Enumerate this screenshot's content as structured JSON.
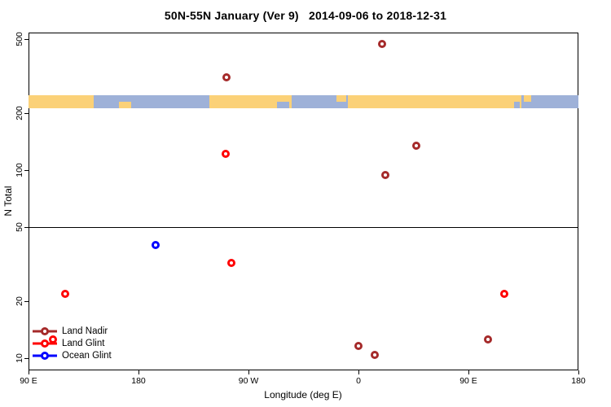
{
  "title": "50N-55N January (Ver 9)   2014-09-06 to 2018-12-31",
  "chart_data": {
    "type": "scatter",
    "title": "50N-55N January (Ver 9)  2014-09-06 to 2018-12-31",
    "xlabel": "Longitude (deg E)",
    "ylabel": "N Total",
    "x_scale": "linear-wrapped-longitude",
    "x_domain_deg_east": [
      90,
      540
    ],
    "x_ticks": [
      {
        "value": 90,
        "label": "90 E"
      },
      {
        "value": 180,
        "label": "180"
      },
      {
        "value": 270,
        "label": "90 W"
      },
      {
        "value": 360,
        "label": "0"
      },
      {
        "value": 450,
        "label": "90 E"
      },
      {
        "value": 540,
        "label": "180"
      }
    ],
    "y_scale": "log10",
    "y_domain": [
      10,
      540
    ],
    "y_ticks": [
      {
        "value": 500,
        "label": "500"
      },
      {
        "value": 200,
        "label": "200"
      },
      {
        "value": 100,
        "label": "100"
      },
      {
        "value": 50,
        "label": "50"
      },
      {
        "value": 20,
        "label": "20"
      },
      {
        "value": 10,
        "label": "10"
      }
    ],
    "hline_at_n": 50,
    "grid": "off",
    "series": [
      {
        "name": "Land Nadir",
        "color": "#A52A2A",
        "points": [
          {
            "lon": 252,
            "n": 310
          },
          {
            "lon": 379,
            "n": 470
          },
          {
            "lon": 407,
            "n": 135
          },
          {
            "lon": 382,
            "n": 94
          },
          {
            "lon": 466,
            "n": 12.6
          },
          {
            "lon": 360,
            "n": 11.6
          },
          {
            "lon": 373,
            "n": 10.4
          }
        ]
      },
      {
        "name": "Land Glint",
        "color": "#FF0000",
        "points": [
          {
            "lon": 251,
            "n": 122
          },
          {
            "lon": 256,
            "n": 32
          },
          {
            "lon": 120,
            "n": 22
          },
          {
            "lon": 479,
            "n": 22
          },
          {
            "lon": 110,
            "n": 12.6
          }
        ]
      },
      {
        "name": "Ocean Glint",
        "color": "#0000FF",
        "points": [
          {
            "lon": 194,
            "n": 40
          }
        ]
      }
    ],
    "map_band": {
      "description": "land/ocean strip for 50N-55N latitude belt",
      "n_top": 250,
      "n_bottom": 213,
      "land_color": "#FBD178",
      "ocean_color": "#9EB1D8",
      "segments": [
        {
          "type": "land",
          "from": 90,
          "to": 143
        },
        {
          "type": "ocean",
          "from": 143,
          "to": 238
        },
        {
          "type": "land",
          "from": 238,
          "to": 305
        },
        {
          "type": "ocean",
          "from": 305,
          "to": 351
        },
        {
          "type": "land",
          "from": 351,
          "to": 493
        },
        {
          "type": "ocean",
          "from": 493,
          "to": 540
        }
      ],
      "patches": [
        {
          "type": "land",
          "from": 164,
          "to": 174,
          "half": "bottom"
        },
        {
          "type": "ocean",
          "from": 293,
          "to": 303,
          "half": "bottom"
        },
        {
          "type": "land",
          "from": 342,
          "to": 350,
          "half": "top"
        },
        {
          "type": "land",
          "from": 495,
          "to": 501,
          "half": "top"
        },
        {
          "type": "ocean",
          "from": 487,
          "to": 492,
          "half": "bottom"
        }
      ]
    },
    "legend": {
      "position": "bottom-left",
      "items": [
        {
          "label": "Land Nadir",
          "color": "#A52A2A"
        },
        {
          "label": "Land Glint",
          "color": "#FF0000"
        },
        {
          "label": "Ocean Glint",
          "color": "#0000FF"
        }
      ]
    }
  }
}
